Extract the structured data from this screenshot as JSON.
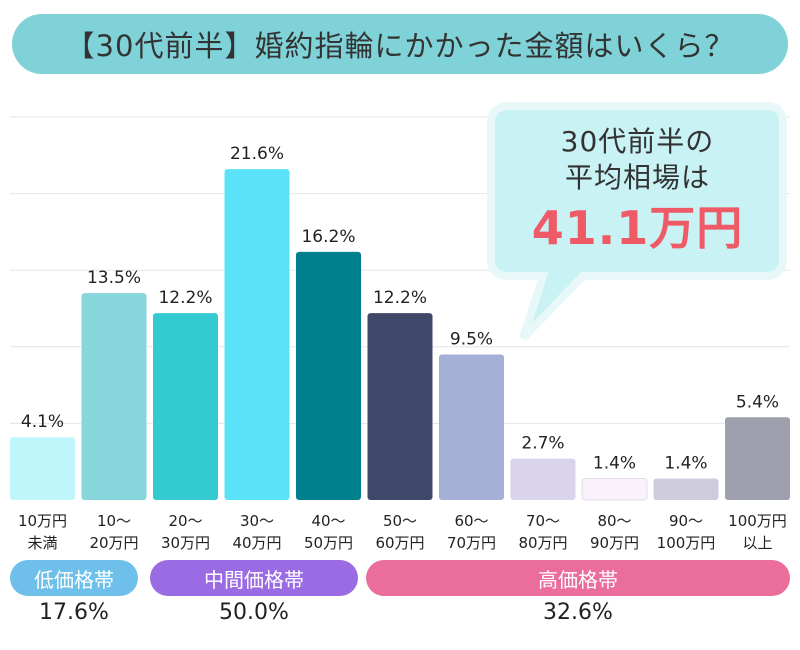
{
  "title": "【30代前半】婚約指輪にかかった金額はいくら？",
  "callout": {
    "line1": "30代前半の",
    "line2": "平均相場は",
    "value": "41.1万円"
  },
  "chart_data": {
    "type": "bar",
    "categories": [
      [
        "10万円",
        "未満"
      ],
      [
        "10〜",
        "20万円"
      ],
      [
        "20〜",
        "30万円"
      ],
      [
        "30〜",
        "40万円"
      ],
      [
        "40〜",
        "50万円"
      ],
      [
        "50〜",
        "60万円"
      ],
      [
        "60〜",
        "70万円"
      ],
      [
        "70〜",
        "80万円"
      ],
      [
        "80〜",
        "90万円"
      ],
      [
        "90〜",
        "100万円"
      ],
      [
        "100万円",
        "以上"
      ]
    ],
    "values": [
      4.1,
      13.5,
      12.2,
      21.6,
      16.2,
      12.2,
      9.5,
      2.7,
      1.4,
      1.4,
      5.4
    ],
    "value_labels": [
      "4.1%",
      "13.5%",
      "12.2%",
      "21.6%",
      "16.2%",
      "12.2%",
      "9.5%",
      "2.7%",
      "1.4%",
      "1.4%",
      "5.4%"
    ],
    "colors": [
      "#bff6fb",
      "#86d6dc",
      "#33cbd1",
      "#5ae2f8",
      "#007f8e",
      "#3f4868",
      "#a4b0d6",
      "#d9d3ec",
      "#f9f1fb",
      "#cfccdc",
      "#9ea0ad"
    ],
    "ylim": [
      0,
      25
    ],
    "grid": true
  },
  "groups": [
    {
      "label": "低価格帯",
      "share": "17.6%",
      "color": "#6ec0ea"
    },
    {
      "label": "中間価格帯",
      "share": "50.0%",
      "color": "#9b6be4"
    },
    {
      "label": "高価格帯",
      "share": "32.6%",
      "color": "#eb6d9b"
    }
  ]
}
